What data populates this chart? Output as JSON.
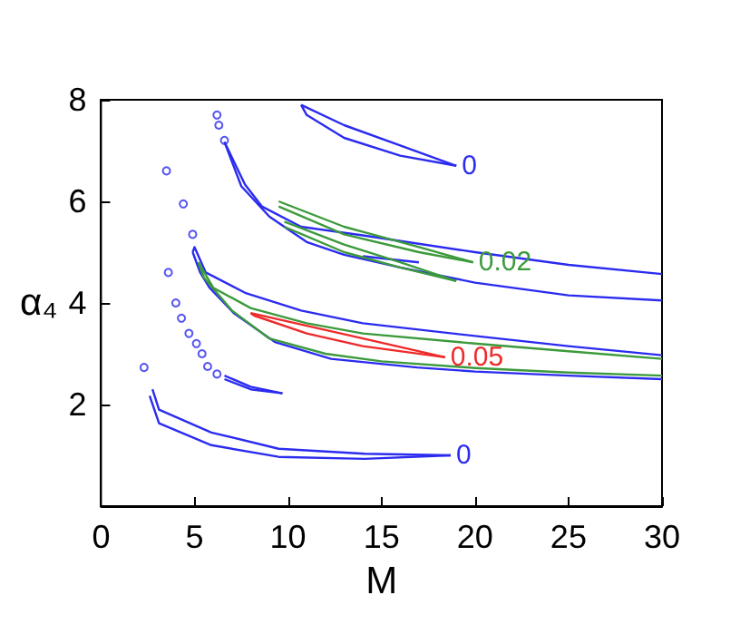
{
  "chart_data": {
    "type": "line",
    "xlabel": "M",
    "ylabel": "α₄",
    "xlim": [
      0,
      30
    ],
    "ylim": [
      0,
      8
    ],
    "xticks": [
      0,
      5,
      10,
      15,
      20,
      25,
      30
    ],
    "yticks": [
      2,
      4,
      6,
      8
    ],
    "grid": false,
    "marker": "none",
    "line_style": "solid",
    "series": [
      {
        "name": "0",
        "color": "#2b2bf0",
        "x": [
          10.7,
          13,
          16,
          19
        ],
        "values": [
          7.9,
          7.5,
          7.1,
          6.7
        ]
      },
      {
        "color": "#2b2bf0",
        "x": [
          10.7,
          11,
          13,
          16,
          19
        ],
        "values": [
          7.9,
          7.7,
          7.25,
          6.9,
          6.7
        ]
      },
      {
        "name": "0",
        "color": "#2b2bf0",
        "x": [
          2.75,
          3.1,
          5.9,
          9.5,
          14.1,
          18.7
        ],
        "values": [
          2.3,
          1.9,
          1.45,
          1.13,
          1.03,
          1.0
        ]
      },
      {
        "color": "#2b2bf0",
        "x": [
          2.6,
          3.1,
          5.9,
          9.5,
          14.1,
          18.7
        ],
        "values": [
          2.17,
          1.63,
          1.2,
          0.97,
          0.93,
          1.0
        ]
      },
      {
        "color": "#2b2bf0",
        "x": [
          6.6,
          8,
          9.7
        ],
        "values": [
          2.57,
          2.35,
          2.22
        ]
      },
      {
        "color": "#2b2bf0",
        "x": [
          6.6,
          8,
          9.7
        ],
        "values": [
          2.5,
          2.3,
          2.22
        ]
      },
      {
        "color": "#2b2bf0",
        "x": [
          6.6,
          7.7,
          8.6,
          10.7,
          14,
          20,
          25,
          30
        ],
        "values": [
          7.17,
          6.33,
          5.9,
          5.5,
          5.33,
          5.0,
          4.75,
          4.57
        ]
      },
      {
        "color": "#2b2bf0",
        "x": [
          6.6,
          7.5,
          9,
          11,
          13,
          16,
          20,
          25,
          30
        ],
        "values": [
          7.17,
          6.3,
          5.7,
          5.2,
          4.95,
          4.7,
          4.4,
          4.15,
          4.05
        ]
      },
      {
        "color": "#2b2bf0",
        "x": [
          14,
          17
        ],
        "values": [
          4.92,
          4.8
        ]
      },
      {
        "name": "0.02",
        "color": "#3c9a3c",
        "x": [
          9.5,
          13,
          17,
          19.9
        ],
        "values": [
          6.0,
          5.5,
          5.1,
          4.8
        ]
      },
      {
        "color": "#3c9a3c",
        "x": [
          9.5,
          13,
          17,
          19.9
        ],
        "values": [
          5.9,
          5.35,
          5.0,
          4.8
        ]
      },
      {
        "color": "#3c9a3c",
        "x": [
          9.8,
          13,
          16,
          19
        ],
        "values": [
          5.6,
          5.15,
          4.8,
          4.43
        ]
      },
      {
        "color": "#3c9a3c",
        "x": [
          9.8,
          13,
          16,
          19
        ],
        "values": [
          5.5,
          5.0,
          4.7,
          4.43
        ]
      },
      {
        "color": "#2b2bf0",
        "x": [
          4.9,
          5.0,
          5.6,
          7.7,
          10.7,
          14,
          20,
          25,
          30
        ],
        "values": [
          5.0,
          5.1,
          4.6,
          4.2,
          3.85,
          3.6,
          3.35,
          3.15,
          2.97
        ]
      },
      {
        "color": "#2b2bf0",
        "x": [
          4.9,
          5.3,
          5.8,
          7.1,
          9.3,
          12.3,
          16.9,
          20,
          25,
          30
        ],
        "values": [
          5.0,
          4.6,
          4.3,
          3.8,
          3.23,
          2.9,
          2.73,
          2.65,
          2.57,
          2.5
        ]
      },
      {
        "color": "#3c9a3c",
        "x": [
          5.2,
          6,
          8,
          11,
          14,
          20,
          25,
          30
        ],
        "values": [
          4.8,
          4.3,
          3.9,
          3.6,
          3.4,
          3.2,
          3.05,
          2.9
        ]
      },
      {
        "color": "#3c9a3c",
        "x": [
          5.2,
          5.5,
          7,
          9,
          12,
          15,
          20,
          25,
          30
        ],
        "values": [
          4.8,
          4.5,
          3.85,
          3.3,
          3.0,
          2.85,
          2.72,
          2.63,
          2.57
        ]
      },
      {
        "name": "0.05",
        "color": "#ee2a2a",
        "x": [
          8,
          11,
          14,
          18.4
        ],
        "values": [
          3.8,
          3.55,
          3.3,
          2.93
        ]
      },
      {
        "color": "#ee2a2a",
        "x": [
          8,
          8.2,
          11,
          14,
          18.4
        ],
        "values": [
          3.8,
          3.75,
          3.4,
          3.15,
          2.93
        ]
      },
      {
        "type": "scatter",
        "marker": "circle",
        "color": "#2b2bf0",
        "x": [
          2.3,
          3.5,
          4.4,
          4.9,
          6.2,
          6.3,
          6.6,
          3.6,
          4.0,
          4.3,
          4.7,
          5.1,
          5.4,
          5.7,
          6.2
        ],
        "values": [
          2.73,
          6.6,
          5.95,
          5.35,
          7.7,
          7.5,
          7.2,
          4.6,
          4.0,
          3.7,
          3.4,
          3.2,
          3.0,
          2.75,
          2.6
        ]
      }
    ]
  }
}
